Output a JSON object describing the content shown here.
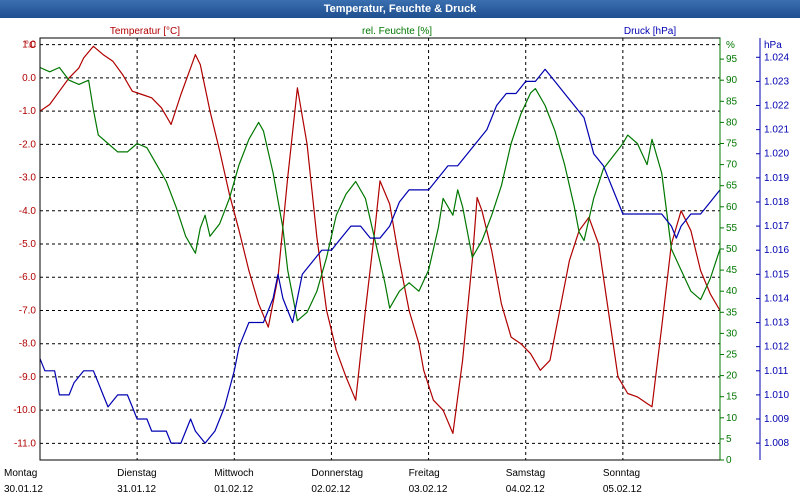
{
  "window": {
    "title": "Temperatur, Feuchte & Druck"
  },
  "colors": {
    "temperature": "#b00000",
    "humidity": "#007700",
    "pressure": "#0000b0",
    "grid": "#000000",
    "background": "#ffffff"
  },
  "chart_data": {
    "type": "line",
    "title": "Temperatur, Feuchte & Druck",
    "grid": true,
    "x_labels": [
      {
        "day": "Montag",
        "date": "30.01.12"
      },
      {
        "day": "Dienstag",
        "date": "31.01.12"
      },
      {
        "day": "Mittwoch",
        "date": "01.02.12"
      },
      {
        "day": "Donnerstag",
        "date": "02.02.12"
      },
      {
        "day": "Freitag",
        "date": "03.02.12"
      },
      {
        "day": "Samstag",
        "date": "04.02.12"
      },
      {
        "day": "Sonntag",
        "date": "05.02.12"
      }
    ],
    "x_range_days": [
      0,
      7
    ],
    "axes": {
      "left": {
        "label": "Temperatur [°C]",
        "unit": "°C",
        "ylim": [
          -11.5,
          1.2
        ],
        "ticks": [
          "1.0",
          "0.0",
          "-1.0",
          "-2.0",
          "-3.0",
          "-4.0",
          "-5.0",
          "-6.0",
          "-7.0",
          "-8.0",
          "-9.0",
          "-10.0",
          "-11.0"
        ],
        "tick_values": [
          1,
          0,
          -1,
          -2,
          -3,
          -4,
          -5,
          -6,
          -7,
          -8,
          -9,
          -10,
          -11
        ]
      },
      "right_humidity": {
        "label": "rel. Feuchte [%]",
        "unit": "%",
        "ylim": [
          0,
          100
        ],
        "ticks": [
          "95",
          "90",
          "85",
          "80",
          "75",
          "70",
          "65",
          "60",
          "55",
          "50",
          "45",
          "40",
          "35",
          "30",
          "25",
          "20",
          "15",
          "10",
          "5",
          "0"
        ],
        "tick_values": [
          95,
          90,
          85,
          80,
          75,
          70,
          65,
          60,
          55,
          50,
          45,
          40,
          35,
          30,
          25,
          20,
          15,
          10,
          5,
          0
        ]
      },
      "right_pressure": {
        "label": "Druck [hPa]",
        "unit": "hPa",
        "ylim": [
          1.0073,
          1.0248
        ],
        "ticks": [
          "1.024",
          "1.023",
          "1.022",
          "1.021",
          "1.020",
          "1.019",
          "1.018",
          "1.017",
          "1.016",
          "1.015",
          "1.014",
          "1.013",
          "1.012",
          "1.011",
          "1.010",
          "1.009",
          "1.008"
        ],
        "tick_values": [
          1.024,
          1.023,
          1.022,
          1.021,
          1.02,
          1.019,
          1.018,
          1.017,
          1.016,
          1.015,
          1.014,
          1.013,
          1.012,
          1.011,
          1.01,
          1.009,
          1.008
        ]
      }
    },
    "series": [
      {
        "name": "Temperatur [°C]",
        "axis": "left",
        "color": "#b00000",
        "points": [
          [
            0.0,
            -1.0
          ],
          [
            0.1,
            -0.8
          ],
          [
            0.2,
            -0.4
          ],
          [
            0.3,
            0.0
          ],
          [
            0.4,
            0.3
          ],
          [
            0.45,
            0.6
          ],
          [
            0.55,
            0.95
          ],
          [
            0.65,
            0.7
          ],
          [
            0.75,
            0.5
          ],
          [
            0.85,
            0.1
          ],
          [
            0.95,
            -0.4
          ],
          [
            1.05,
            -0.5
          ],
          [
            1.15,
            -0.6
          ],
          [
            1.25,
            -0.9
          ],
          [
            1.35,
            -1.4
          ],
          [
            1.45,
            -0.5
          ],
          [
            1.55,
            0.3
          ],
          [
            1.6,
            0.7
          ],
          [
            1.65,
            0.4
          ],
          [
            1.75,
            -1.0
          ],
          [
            1.85,
            -2.2
          ],
          [
            1.95,
            -3.5
          ],
          [
            2.05,
            -4.6
          ],
          [
            2.15,
            -5.8
          ],
          [
            2.25,
            -6.8
          ],
          [
            2.35,
            -7.5
          ],
          [
            2.45,
            -6.0
          ],
          [
            2.55,
            -3.0
          ],
          [
            2.65,
            -0.3
          ],
          [
            2.75,
            -2.0
          ],
          [
            2.85,
            -4.8
          ],
          [
            2.95,
            -7.0
          ],
          [
            3.05,
            -8.2
          ],
          [
            3.15,
            -9.0
          ],
          [
            3.25,
            -9.7
          ],
          [
            3.35,
            -7.0
          ],
          [
            3.45,
            -4.5
          ],
          [
            3.5,
            -3.1
          ],
          [
            3.6,
            -3.8
          ],
          [
            3.7,
            -5.5
          ],
          [
            3.8,
            -7.0
          ],
          [
            3.9,
            -8.0
          ],
          [
            3.95,
            -8.8
          ],
          [
            4.05,
            -9.7
          ],
          [
            4.15,
            -10.0
          ],
          [
            4.25,
            -10.7
          ],
          [
            4.35,
            -8.5
          ],
          [
            4.45,
            -5.5
          ],
          [
            4.5,
            -3.6
          ],
          [
            4.55,
            -4.0
          ],
          [
            4.65,
            -5.2
          ],
          [
            4.75,
            -6.8
          ],
          [
            4.85,
            -7.8
          ],
          [
            4.95,
            -8.0
          ],
          [
            5.05,
            -8.3
          ],
          [
            5.15,
            -8.8
          ],
          [
            5.25,
            -8.5
          ],
          [
            5.35,
            -7.0
          ],
          [
            5.45,
            -5.5
          ],
          [
            5.55,
            -4.6
          ],
          [
            5.65,
            -4.2
          ],
          [
            5.75,
            -5.0
          ],
          [
            5.85,
            -7.0
          ],
          [
            5.95,
            -9.0
          ],
          [
            6.05,
            -9.5
          ],
          [
            6.15,
            -9.6
          ],
          [
            6.25,
            -9.8
          ],
          [
            6.3,
            -9.9
          ],
          [
            6.4,
            -7.5
          ],
          [
            6.5,
            -5.0
          ],
          [
            6.6,
            -4.0
          ],
          [
            6.7,
            -4.6
          ],
          [
            6.8,
            -5.8
          ],
          [
            6.9,
            -6.5
          ],
          [
            7.0,
            -7.0
          ]
        ]
      },
      {
        "name": "rel. Feuchte [%]",
        "axis": "right_humidity",
        "color": "#007700",
        "points": [
          [
            0.0,
            93
          ],
          [
            0.1,
            92
          ],
          [
            0.2,
            93
          ],
          [
            0.3,
            90
          ],
          [
            0.4,
            89
          ],
          [
            0.5,
            90
          ],
          [
            0.55,
            83
          ],
          [
            0.6,
            77
          ],
          [
            0.7,
            75
          ],
          [
            0.8,
            73
          ],
          [
            0.9,
            73
          ],
          [
            1.0,
            75
          ],
          [
            1.1,
            74
          ],
          [
            1.2,
            70
          ],
          [
            1.3,
            66
          ],
          [
            1.4,
            60
          ],
          [
            1.5,
            53
          ],
          [
            1.6,
            49
          ],
          [
            1.65,
            55
          ],
          [
            1.7,
            58
          ],
          [
            1.75,
            53
          ],
          [
            1.85,
            56
          ],
          [
            1.95,
            62
          ],
          [
            2.05,
            70
          ],
          [
            2.15,
            76
          ],
          [
            2.25,
            80
          ],
          [
            2.3,
            78
          ],
          [
            2.4,
            68
          ],
          [
            2.5,
            55
          ],
          [
            2.55,
            45
          ],
          [
            2.65,
            33
          ],
          [
            2.75,
            35
          ],
          [
            2.85,
            40
          ],
          [
            2.95,
            48
          ],
          [
            3.05,
            58
          ],
          [
            3.15,
            63
          ],
          [
            3.25,
            66
          ],
          [
            3.35,
            62
          ],
          [
            3.45,
            52
          ],
          [
            3.55,
            42
          ],
          [
            3.6,
            36
          ],
          [
            3.7,
            40
          ],
          [
            3.8,
            42
          ],
          [
            3.9,
            40
          ],
          [
            4.0,
            45
          ],
          [
            4.1,
            55
          ],
          [
            4.15,
            62
          ],
          [
            4.2,
            60
          ],
          [
            4.25,
            58
          ],
          [
            4.3,
            64
          ],
          [
            4.35,
            60
          ],
          [
            4.45,
            48
          ],
          [
            4.55,
            52
          ],
          [
            4.65,
            58
          ],
          [
            4.75,
            65
          ],
          [
            4.85,
            75
          ],
          [
            4.95,
            82
          ],
          [
            5.05,
            87
          ],
          [
            5.1,
            88
          ],
          [
            5.2,
            84
          ],
          [
            5.3,
            78
          ],
          [
            5.4,
            70
          ],
          [
            5.5,
            60
          ],
          [
            5.55,
            54
          ],
          [
            5.6,
            52
          ],
          [
            5.7,
            62
          ],
          [
            5.8,
            69
          ],
          [
            5.9,
            72
          ],
          [
            6.0,
            75
          ],
          [
            6.05,
            77
          ],
          [
            6.15,
            75
          ],
          [
            6.25,
            70
          ],
          [
            6.3,
            76
          ],
          [
            6.4,
            68
          ],
          [
            6.5,
            50
          ],
          [
            6.6,
            45
          ],
          [
            6.7,
            40
          ],
          [
            6.8,
            38
          ],
          [
            6.9,
            43
          ],
          [
            7.0,
            50
          ]
        ]
      },
      {
        "name": "Druck [hPa]",
        "axis": "right_pressure",
        "color": "#0000b0",
        "points": [
          [
            0.0,
            1.0115
          ],
          [
            0.05,
            1.011
          ],
          [
            0.15,
            1.011
          ],
          [
            0.2,
            1.01
          ],
          [
            0.3,
            1.01
          ],
          [
            0.35,
            1.0105
          ],
          [
            0.45,
            1.011
          ],
          [
            0.55,
            1.011
          ],
          [
            0.6,
            1.0105
          ],
          [
            0.65,
            1.01
          ],
          [
            0.7,
            1.0095
          ],
          [
            0.8,
            1.01
          ],
          [
            0.9,
            1.01
          ],
          [
            0.95,
            1.0095
          ],
          [
            1.0,
            1.009
          ],
          [
            1.1,
            1.009
          ],
          [
            1.15,
            1.0085
          ],
          [
            1.3,
            1.0085
          ],
          [
            1.35,
            1.008
          ],
          [
            1.45,
            1.008
          ],
          [
            1.55,
            1.009
          ],
          [
            1.6,
            1.0085
          ],
          [
            1.7,
            1.008
          ],
          [
            1.8,
            1.0085
          ],
          [
            1.9,
            1.0095
          ],
          [
            2.0,
            1.011
          ],
          [
            2.05,
            1.012
          ],
          [
            2.15,
            1.013
          ],
          [
            2.3,
            1.013
          ],
          [
            2.4,
            1.014
          ],
          [
            2.45,
            1.015
          ],
          [
            2.5,
            1.014
          ],
          [
            2.55,
            1.0135
          ],
          [
            2.6,
            1.013
          ],
          [
            2.65,
            1.014
          ],
          [
            2.7,
            1.015
          ],
          [
            2.8,
            1.0155
          ],
          [
            2.9,
            1.016
          ],
          [
            3.0,
            1.016
          ],
          [
            3.1,
            1.0165
          ],
          [
            3.2,
            1.017
          ],
          [
            3.3,
            1.017
          ],
          [
            3.4,
            1.0165
          ],
          [
            3.5,
            1.0165
          ],
          [
            3.6,
            1.017
          ],
          [
            3.7,
            1.018
          ],
          [
            3.8,
            1.0185
          ],
          [
            3.9,
            1.0185
          ],
          [
            4.0,
            1.0185
          ],
          [
            4.1,
            1.019
          ],
          [
            4.2,
            1.0195
          ],
          [
            4.3,
            1.0195
          ],
          [
            4.4,
            1.02
          ],
          [
            4.5,
            1.0205
          ],
          [
            4.6,
            1.021
          ],
          [
            4.7,
            1.022
          ],
          [
            4.8,
            1.0225
          ],
          [
            4.9,
            1.0225
          ],
          [
            5.0,
            1.023
          ],
          [
            5.1,
            1.023
          ],
          [
            5.2,
            1.0235
          ],
          [
            5.3,
            1.023
          ],
          [
            5.4,
            1.0225
          ],
          [
            5.5,
            1.022
          ],
          [
            5.6,
            1.0215
          ],
          [
            5.7,
            1.02
          ],
          [
            5.8,
            1.0195
          ],
          [
            5.9,
            1.0185
          ],
          [
            6.0,
            1.0175
          ],
          [
            6.1,
            1.0175
          ],
          [
            6.2,
            1.0175
          ],
          [
            6.3,
            1.0175
          ],
          [
            6.4,
            1.0175
          ],
          [
            6.5,
            1.017
          ],
          [
            6.55,
            1.0165
          ],
          [
            6.6,
            1.017
          ],
          [
            6.7,
            1.0175
          ],
          [
            6.8,
            1.0175
          ],
          [
            6.9,
            1.018
          ],
          [
            7.0,
            1.0185
          ]
        ]
      }
    ]
  }
}
